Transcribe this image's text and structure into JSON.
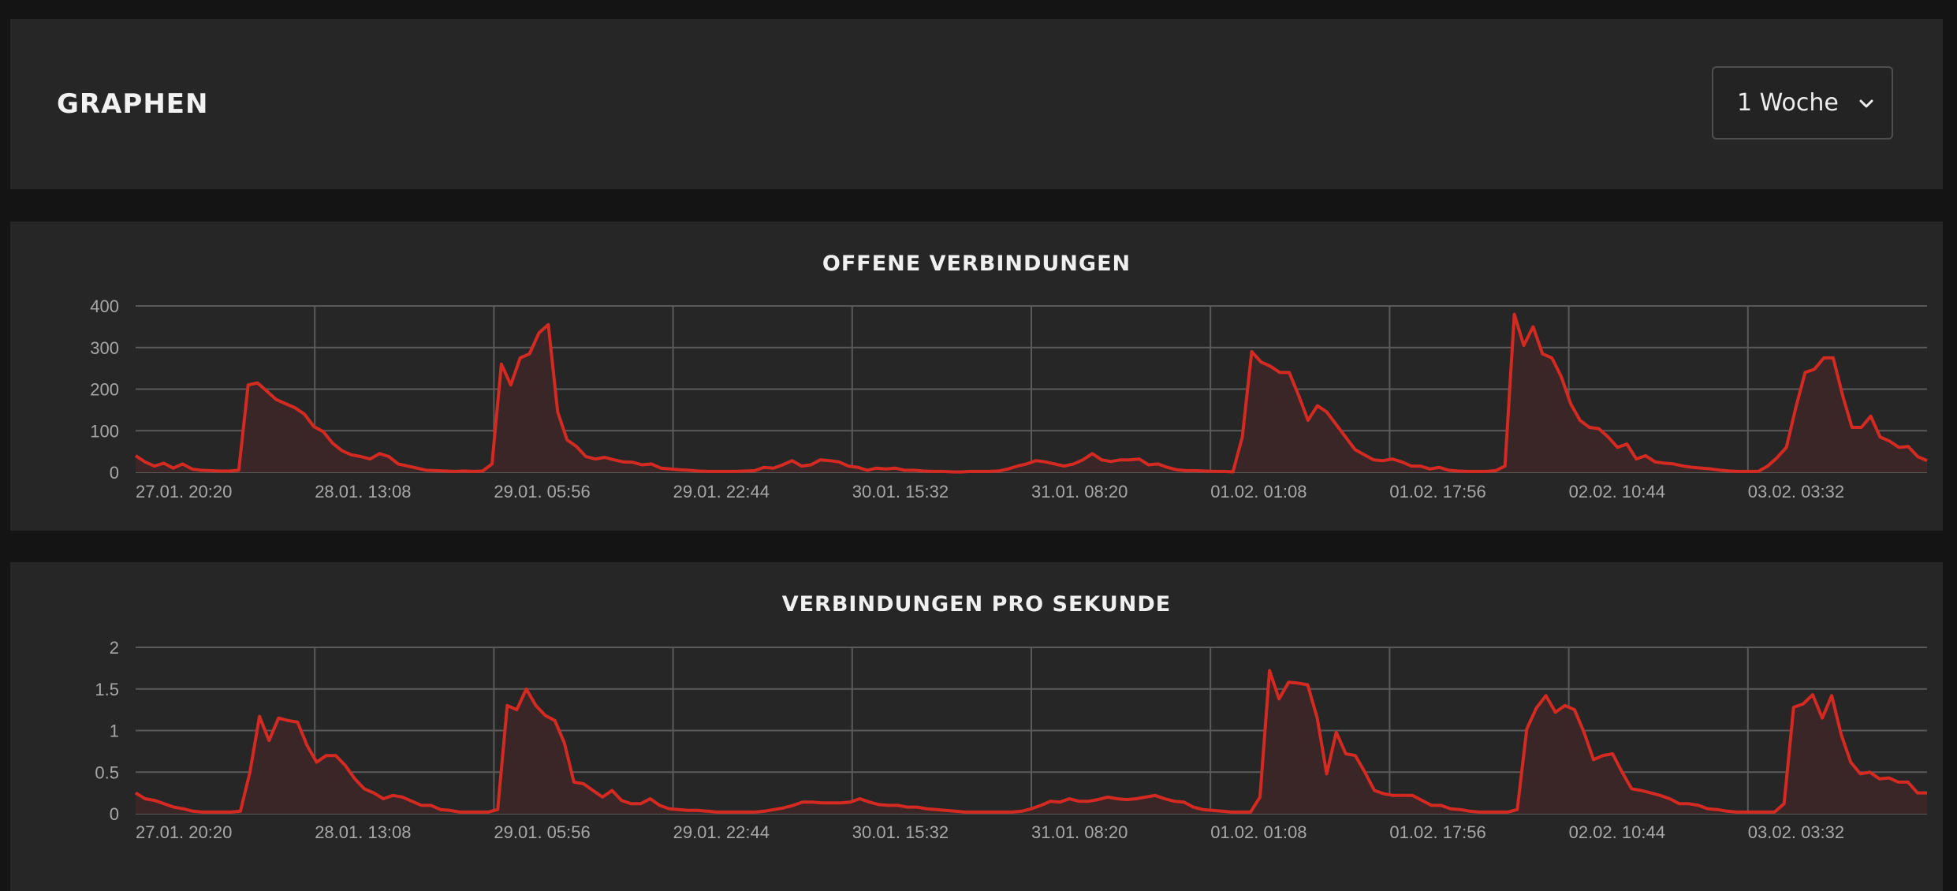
{
  "header": {
    "title": "GRAPHEN",
    "range_select": {
      "value": "1 Woche"
    }
  },
  "theme": {
    "line_color": "#d42a22",
    "fill_color": "#3a2626",
    "grid_color": "#5a5a5a",
    "tick_color": "#a7a7a7"
  },
  "chart_data": [
    {
      "type": "area",
      "title": "OFFENE VERBINDUNGEN",
      "xlabel": "",
      "ylabel": "",
      "ylim": [
        0,
        400
      ],
      "yticks": [
        "0",
        "100",
        "200",
        "300",
        "400"
      ],
      "xticks": [
        "27.01. 20:20",
        "28.01. 13:08",
        "29.01. 05:56",
        "29.01. 22:44",
        "30.01. 15:32",
        "31.01. 08:20",
        "01.02. 01:08",
        "01.02. 17:56",
        "02.02. 10:44",
        "03.02. 03:32"
      ],
      "grid": true,
      "values": [
        40,
        25,
        15,
        22,
        10,
        20,
        8,
        5,
        4,
        3,
        3,
        5,
        210,
        215,
        195,
        175,
        165,
        155,
        140,
        110,
        98,
        70,
        52,
        42,
        38,
        32,
        45,
        38,
        20,
        15,
        10,
        5,
        4,
        3,
        2,
        3,
        2,
        3,
        20,
        260,
        210,
        275,
        285,
        335,
        355,
        145,
        78,
        62,
        38,
        32,
        36,
        30,
        25,
        24,
        18,
        20,
        10,
        8,
        6,
        5,
        3,
        2,
        2,
        2,
        2,
        3,
        4,
        12,
        10,
        18,
        28,
        15,
        18,
        30,
        28,
        25,
        15,
        12,
        5,
        10,
        8,
        10,
        5,
        5,
        3,
        2,
        2,
        1,
        1,
        2,
        2,
        2,
        3,
        8,
        15,
        20,
        28,
        25,
        20,
        15,
        20,
        30,
        45,
        30,
        26,
        30,
        30,
        32,
        18,
        20,
        12,
        6,
        4,
        4,
        3,
        2,
        2,
        1,
        85,
        290,
        265,
        255,
        240,
        240,
        185,
        125,
        160,
        145,
        115,
        85,
        55,
        42,
        30,
        28,
        32,
        25,
        15,
        15,
        8,
        12,
        5,
        3,
        2,
        2,
        2,
        4,
        15,
        380,
        305,
        350,
        285,
        275,
        230,
        165,
        125,
        108,
        105,
        85,
        60,
        68,
        32,
        40,
        25,
        22,
        20,
        15,
        12,
        10,
        8,
        5,
        3,
        2,
        2,
        2,
        15,
        35,
        60,
        155,
        240,
        248,
        275,
        275,
        185,
        108,
        108,
        135,
        85,
        75,
        60,
        62,
        38,
        28
      ]
    },
    {
      "type": "area",
      "title": "VERBINDUNGEN PRO SEKUNDE",
      "xlabel": "",
      "ylabel": "",
      "ylim": [
        0,
        2
      ],
      "yticks": [
        "0",
        "0.5",
        "1",
        "1.5",
        "2"
      ],
      "xticks": [
        "27.01. 20:20",
        "28.01. 13:08",
        "29.01. 05:56",
        "29.01. 22:44",
        "30.01. 15:32",
        "31.01. 08:20",
        "01.02. 01:08",
        "01.02. 17:56",
        "02.02. 10:44",
        "03.02. 03:32"
      ],
      "grid": true,
      "values": [
        0.25,
        0.18,
        0.16,
        0.12,
        0.08,
        0.06,
        0.03,
        0.02,
        0.02,
        0.02,
        0.02,
        0.03,
        0.5,
        1.17,
        0.88,
        1.15,
        1.12,
        1.1,
        0.82,
        0.62,
        0.7,
        0.7,
        0.58,
        0.42,
        0.3,
        0.25,
        0.18,
        0.22,
        0.2,
        0.15,
        0.1,
        0.1,
        0.05,
        0.04,
        0.02,
        0.02,
        0.02,
        0.02,
        0.05,
        1.3,
        1.25,
        1.5,
        1.3,
        1.18,
        1.12,
        0.85,
        0.38,
        0.36,
        0.28,
        0.2,
        0.28,
        0.16,
        0.12,
        0.12,
        0.18,
        0.1,
        0.06,
        0.05,
        0.04,
        0.04,
        0.03,
        0.02,
        0.02,
        0.02,
        0.02,
        0.02,
        0.03,
        0.05,
        0.07,
        0.1,
        0.14,
        0.14,
        0.13,
        0.13,
        0.13,
        0.14,
        0.18,
        0.14,
        0.11,
        0.1,
        0.1,
        0.08,
        0.08,
        0.06,
        0.05,
        0.04,
        0.03,
        0.02,
        0.02,
        0.02,
        0.02,
        0.02,
        0.02,
        0.03,
        0.06,
        0.1,
        0.15,
        0.14,
        0.18,
        0.15,
        0.15,
        0.17,
        0.2,
        0.18,
        0.17,
        0.18,
        0.2,
        0.22,
        0.18,
        0.15,
        0.14,
        0.08,
        0.05,
        0.04,
        0.03,
        0.02,
        0.02,
        0.02,
        0.2,
        1.72,
        1.38,
        1.58,
        1.57,
        1.55,
        1.15,
        0.48,
        0.98,
        0.72,
        0.7,
        0.5,
        0.28,
        0.24,
        0.22,
        0.22,
        0.22,
        0.16,
        0.1,
        0.1,
        0.06,
        0.05,
        0.03,
        0.02,
        0.02,
        0.02,
        0.02,
        0.05,
        1.02,
        1.27,
        1.42,
        1.22,
        1.3,
        1.25,
        0.98,
        0.65,
        0.7,
        0.72,
        0.5,
        0.3,
        0.28,
        0.25,
        0.22,
        0.18,
        0.12,
        0.12,
        0.1,
        0.06,
        0.05,
        0.03,
        0.02,
        0.02,
        0.02,
        0.02,
        0.02,
        0.12,
        1.28,
        1.32,
        1.43,
        1.15,
        1.42,
        0.95,
        0.62,
        0.48,
        0.5,
        0.42,
        0.43,
        0.38,
        0.38,
        0.25,
        0.25
      ]
    }
  ]
}
